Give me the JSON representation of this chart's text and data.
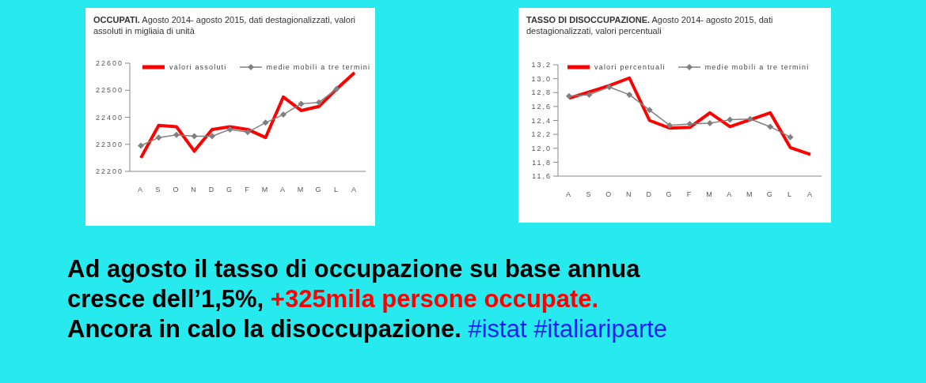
{
  "chart_data": [
    {
      "type": "line",
      "title": "OCCUPATI.",
      "subtitle": "Agosto 2014- agosto 2015, dati destagionalizzati, valori assoluti in migliaia di unità",
      "categories": [
        "A",
        "S",
        "O",
        "N",
        "D",
        "G",
        "F",
        "M",
        "A",
        "M",
        "G",
        "L",
        "A"
      ],
      "series": [
        {
          "name": "valori assoluti",
          "color": "#ff0000",
          "marker": "none",
          "values": [
            22250,
            22370,
            22365,
            22275,
            22355,
            22365,
            22355,
            22325,
            22475,
            22425,
            22440,
            22505,
            22565
          ]
        },
        {
          "name": "medie mobili a tre termini",
          "color": "#808080",
          "marker": "diamond",
          "values": [
            22295,
            22325,
            22335,
            22330,
            22330,
            22355,
            22345,
            22380,
            22410,
            22450,
            22455,
            22505,
            null
          ]
        }
      ],
      "ylim": [
        22200,
        22600
      ],
      "yticks": [
        22200,
        22300,
        22400,
        22500,
        22600
      ],
      "grid": false,
      "legend": "top"
    },
    {
      "type": "line",
      "title": "TASSO DI DISOCCUPAZIONE.",
      "subtitle": "Agosto 2014- agosto 2015, dati destagionalizzati, valori percentuali",
      "categories": [
        "A",
        "S",
        "O",
        "N",
        "D",
        "G",
        "F",
        "M",
        "A",
        "M",
        "G",
        "L",
        "A"
      ],
      "series": [
        {
          "name": "valori percentuali",
          "color": "#ff0000",
          "marker": "none",
          "values": [
            12.72,
            12.81,
            12.9,
            13.01,
            12.4,
            12.29,
            12.3,
            12.51,
            12.31,
            12.41,
            12.51,
            12.01,
            11.91
          ]
        },
        {
          "name": "medie mobili a tre termini",
          "color": "#808080",
          "marker": "diamond",
          "values": [
            12.75,
            12.77,
            12.88,
            12.77,
            12.55,
            12.33,
            12.35,
            12.36,
            12.41,
            12.42,
            12.31,
            12.16,
            null
          ]
        }
      ],
      "ylim": [
        11.6,
        13.2
      ],
      "yticks": [
        {
          "value": 11.6,
          "label": "11,6"
        },
        {
          "value": 11.8,
          "label": "11,8"
        },
        {
          "value": 12.0,
          "label": "12,0"
        },
        {
          "value": 12.2,
          "label": "12,2"
        },
        {
          "value": 12.4,
          "label": "12,4"
        },
        {
          "value": 12.6,
          "label": "12,6"
        },
        {
          "value": 12.8,
          "label": "12,8"
        },
        {
          "value": 13.0,
          "label": "13,0"
        },
        {
          "value": 13.2,
          "label": "13,2"
        }
      ],
      "grid": false,
      "legend": "top"
    },
    {
      "type": "other",
      "annotations": [
        "Ad agosto il tasso di occupazione su base annua",
        "cresce dell’1,5%,",
        "+325mila persone occupate.",
        "Ancora in calo la disoccupazione.",
        "#istat #italiariparte"
      ]
    }
  ]
}
